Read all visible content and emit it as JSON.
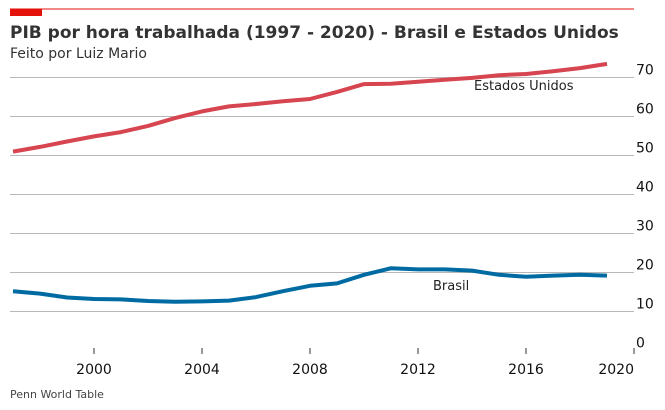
{
  "chart_data": {
    "type": "line",
    "title": "PIB por hora trabalhada (1997 - 2020) - Brasil e Estados Unidos",
    "subtitle": "Feito por Luiz Mario",
    "source": "Penn World Table",
    "xlim": [
      1997,
      2020
    ],
    "ylim": [
      0,
      75
    ],
    "x_ticks": [
      2000,
      2004,
      2008,
      2012,
      2016,
      2020
    ],
    "y_ticks": [
      0,
      10,
      20,
      30,
      40,
      50,
      60,
      70
    ],
    "y_axis_side": "right",
    "grid": "horizontal",
    "accent_color": "#e3120b",
    "series": [
      {
        "name": "Estados Unidos",
        "color": "#d64550",
        "x": [
          1997,
          1998,
          1999,
          2000,
          2001,
          2002,
          2003,
          2004,
          2005,
          2006,
          2007,
          2008,
          2009,
          2010,
          2011,
          2012,
          2013,
          2014,
          2015,
          2016,
          2017,
          2018,
          2019
        ],
        "values": [
          51.0,
          52.2,
          53.6,
          54.9,
          56.0,
          57.6,
          59.6,
          61.3,
          62.6,
          63.2,
          63.9,
          64.5,
          66.3,
          68.3,
          68.4,
          68.9,
          69.4,
          69.9,
          70.6,
          70.9,
          71.6,
          72.4,
          73.5
        ]
      },
      {
        "name": "Brasil",
        "color": "#006ba2",
        "x": [
          1997,
          1998,
          1999,
          2000,
          2001,
          2002,
          2003,
          2004,
          2005,
          2006,
          2007,
          2008,
          2009,
          2010,
          2011,
          2012,
          2013,
          2014,
          2015,
          2016,
          2017,
          2018,
          2019
        ],
        "values": [
          15.2,
          14.6,
          13.6,
          13.2,
          13.1,
          12.7,
          12.5,
          12.6,
          12.8,
          13.7,
          15.2,
          16.6,
          17.2,
          19.4,
          21.1,
          20.8,
          20.8,
          20.5,
          19.4,
          18.9,
          19.2,
          19.4,
          19.2
        ]
      }
    ]
  }
}
